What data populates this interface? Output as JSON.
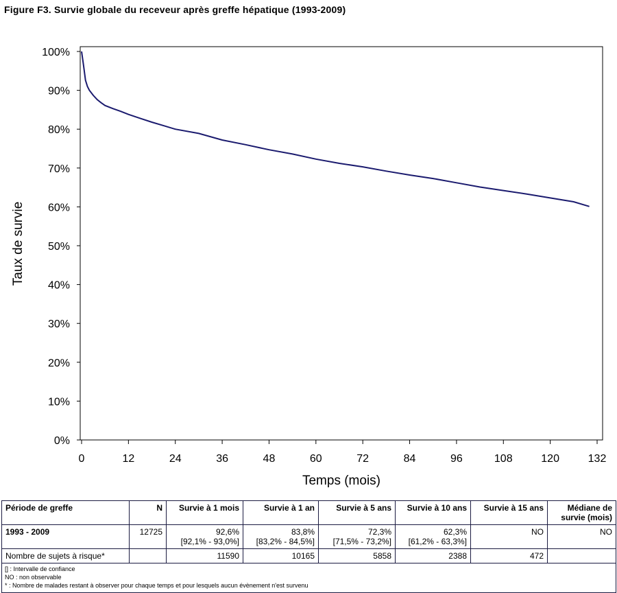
{
  "figure_title": "Figure F3. Survie globale du receveur après greffe hépatique (1993-2009)",
  "chart_data": {
    "type": "line",
    "title": "Figure F3. Survie globale du receveur après greffe hépatique (1993-2009)",
    "xlabel": "Temps (mois)",
    "ylabel": "Taux de survie",
    "xlim": [
      0,
      132
    ],
    "ylim": [
      0,
      100
    ],
    "x_ticks": [
      0,
      12,
      24,
      36,
      48,
      60,
      72,
      84,
      96,
      108,
      120,
      132
    ],
    "y_ticks": [
      0,
      10,
      20,
      30,
      40,
      50,
      60,
      70,
      80,
      90,
      100
    ],
    "y_tick_labels": [
      "0%",
      "10%",
      "20%",
      "30%",
      "40%",
      "50%",
      "60%",
      "70%",
      "80%",
      "90%",
      "100%"
    ],
    "line_color": "#1a1a6e",
    "grid": false,
    "series": [
      {
        "x": [
          0,
          0.5,
          1,
          1.5,
          2,
          3,
          4,
          5,
          6,
          8,
          10,
          12,
          15,
          18,
          21,
          24,
          30,
          36,
          42,
          48,
          54,
          60,
          66,
          72,
          78,
          84,
          90,
          96,
          102,
          108,
          114,
          120,
          126,
          130
        ],
        "values": [
          100,
          96.5,
          92.6,
          91.0,
          90.0,
          88.7,
          87.6,
          86.8,
          86.1,
          85.3,
          84.6,
          83.8,
          82.8,
          81.8,
          80.9,
          80.0,
          78.9,
          77.2,
          76.0,
          74.7,
          73.6,
          72.3,
          71.2,
          70.3,
          69.2,
          68.2,
          67.3,
          66.2,
          65.1,
          64.2,
          63.3,
          62.3,
          61.3,
          60.1
        ]
      }
    ]
  },
  "table": {
    "headers": [
      "Période de greffe",
      "N",
      "Survie à 1 mois",
      "Survie à 1 an",
      "Survie à 5 ans",
      "Survie à 10 ans",
      "Survie à 15 ans",
      "Médiane de survie (mois)"
    ],
    "row_period": {
      "label": "1993 - 2009",
      "n": "12725",
      "s1m": "92,6%",
      "s1m_ci": "[92,1% - 93,0%]",
      "s1a": "83,8%",
      "s1a_ci": "[83,2% - 84,5%]",
      "s5a": "72,3%",
      "s5a_ci": "[71,5% - 73,2%]",
      "s10a": "62,3%",
      "s10a_ci": "[61,2% - 63,3%]",
      "s15a": "NO",
      "median": "NO"
    },
    "row_risk": {
      "label": "Nombre de sujets à risque*",
      "s1m": "11590",
      "s1a": "10165",
      "s5a": "5858",
      "s10a": "2388",
      "s15a": "472"
    },
    "notes": [
      "[] : Intervalle de confiance",
      "NO : non observable",
      "* : Nombre de malades restant à observer pour chaque temps et pour lesquels aucun évènement n'est survenu"
    ]
  }
}
